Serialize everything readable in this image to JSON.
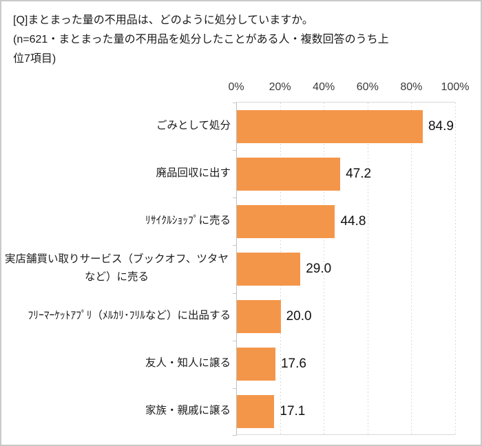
{
  "header": {
    "title": "[Q]まとまった量の不用品は、どのように処分していますか。",
    "subtitle": "(n=621・まとまった量の不用品を処分したことがある人・複数回答のうち上位7項目)"
  },
  "chart_data": {
    "type": "bar",
    "orientation": "horizontal",
    "categories": [
      "ごみとして処分",
      "廃品回収に出す",
      "ﾘｻｲｸﾙｼｮｯﾌﾟに売る",
      "実店舗買い取りサービス（ブックオフ、ツタヤなど）に売る",
      "ﾌﾘｰﾏｰｹｯﾄｱﾌﾟﾘ（ﾒﾙｶﾘ･ﾌﾘﾙなど）に出品する",
      "友人・知人に譲る",
      "家族・親戚に譲る"
    ],
    "values": [
      84.9,
      47.2,
      44.8,
      29.0,
      20.0,
      17.6,
      17.1
    ],
    "value_labels": [
      "84.9",
      "47.2",
      "44.8",
      "29.0",
      "20.0",
      "17.6",
      "17.1"
    ],
    "x_axis": {
      "position": "top",
      "min": 0,
      "max": 100,
      "ticks": [
        "0%",
        "20%",
        "40%",
        "60%",
        "80%",
        "100%"
      ]
    },
    "grid": {
      "show": true,
      "style": "dashed",
      "color": "#d9d9d9"
    },
    "colors": {
      "bar": "#f4964a",
      "axis_text": "#3a3a3a",
      "value_text": "#111111",
      "category_text": "#1a1a1a",
      "frame": "#c9c9c9"
    }
  }
}
